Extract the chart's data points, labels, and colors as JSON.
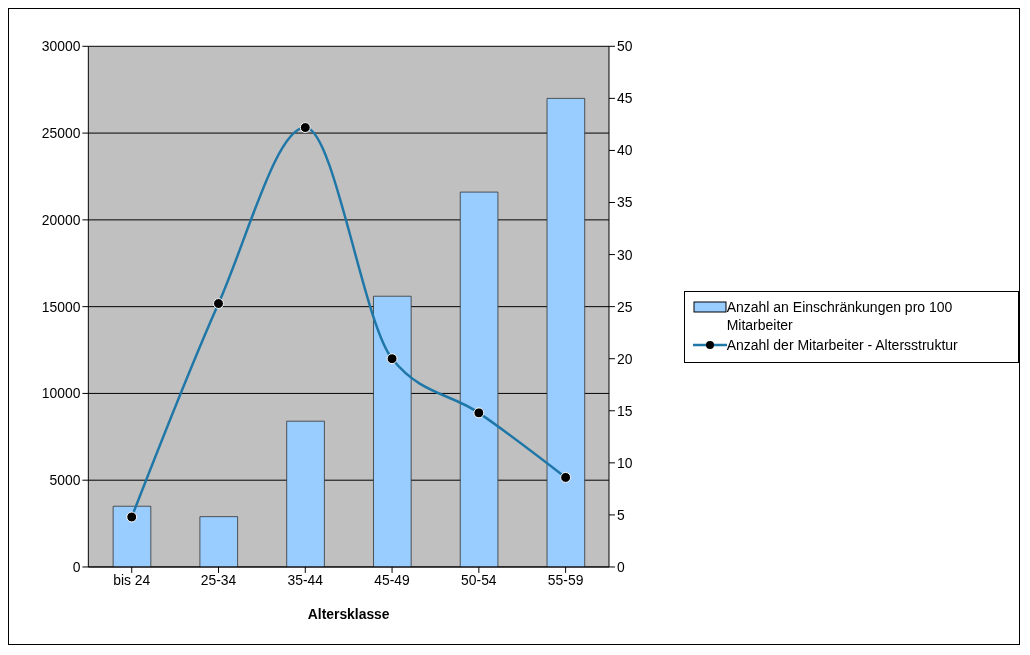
{
  "chart_data": {
    "type": "bar",
    "xlabel": "Altersklasse",
    "categories": [
      "bis 24",
      "25-34",
      "35-44",
      "45-49",
      "50-54",
      "55-59"
    ],
    "series": [
      {
        "name": "Anzahl an Einschränkungen pro 100 Mitarbeiter",
        "color": "#99ccff",
        "values": [
          3500,
          2900,
          8400,
          15600,
          21600,
          27000
        ]
      },
      {
        "name": "Anzahl der Mitarbeiter - Altersstruktur",
        "type": "line",
        "axis": "y2",
        "color": "#1f77a8",
        "values": [
          4.8,
          25.3,
          42.2,
          20,
          14.8,
          8.6
        ]
      }
    ],
    "ylim": [
      0,
      30000
    ],
    "yticks": [
      0,
      5000,
      10000,
      15000,
      20000,
      25000,
      30000
    ],
    "y2lim": [
      0,
      50
    ],
    "y2ticks": [
      0,
      5,
      10,
      15,
      20,
      25,
      30,
      35,
      40,
      45,
      50
    ],
    "grid": "y",
    "legend": "right",
    "marker": "circle"
  }
}
